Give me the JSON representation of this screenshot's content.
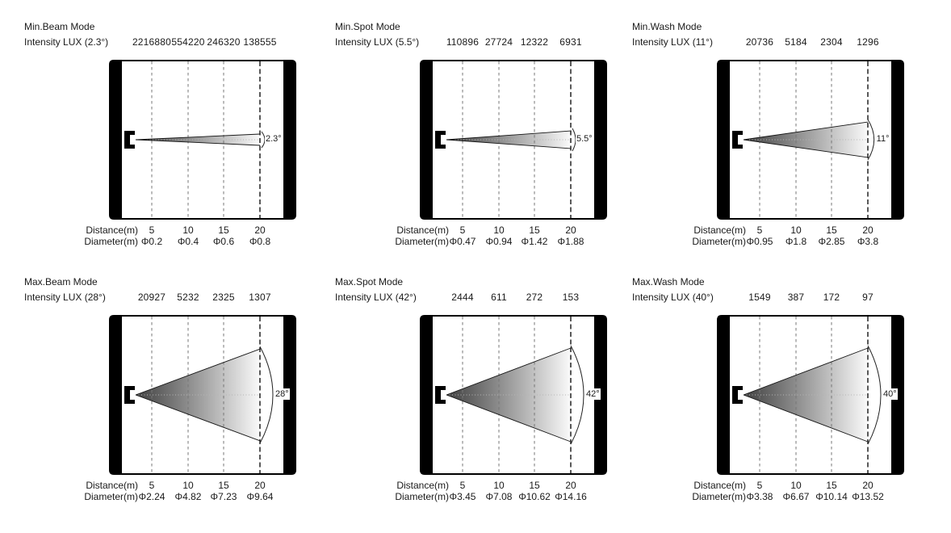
{
  "colors": {
    "frame": "#000000",
    "dash_minor": "#777777",
    "dash_major": "#000000",
    "beam_dark": "#3f3f3f",
    "beam_mid": "#9b9b9b",
    "beam_light": "#fafafa",
    "beam_edge": "#151515",
    "center_dots": "#b5b5b5",
    "arc": "#222222",
    "text": "#1a1a1a"
  },
  "panels": [
    {
      "title": "Min.Beam Mode",
      "intensity_label": "Intensity LUX (2.3°)",
      "beam_angle_deg": 2.3,
      "angle_label": "2.3°",
      "intensity_values": [
        "2216880",
        "554220",
        "246320",
        "138555"
      ],
      "distance_label": "Distance(m)",
      "diameter_label": "Diameter(m)",
      "distances": [
        "5",
        "10",
        "15",
        "20"
      ],
      "diameters": [
        "Φ0.2",
        "Φ0.4",
        "Φ0.6",
        "Φ0.8"
      ]
    },
    {
      "title": "Min.Spot Mode",
      "intensity_label": "Intensity LUX (5.5°)",
      "beam_angle_deg": 5.5,
      "angle_label": "5.5°",
      "intensity_values": [
        "110896",
        "27724",
        "12322",
        "6931"
      ],
      "distance_label": "Distance(m)",
      "diameter_label": "Diameter(m)",
      "distances": [
        "5",
        "10",
        "15",
        "20"
      ],
      "diameters": [
        "Φ0.47",
        "Φ0.94",
        "Φ1.42",
        "Φ1.88"
      ]
    },
    {
      "title": "Min.Wash Mode",
      "intensity_label": "Intensity LUX (11°)",
      "beam_angle_deg": 11,
      "angle_label": "11°",
      "intensity_values": [
        "20736",
        "5184",
        "2304",
        "1296"
      ],
      "distance_label": "Distance(m)",
      "diameter_label": "Diameter(m)",
      "distances": [
        "5",
        "10",
        "15",
        "20"
      ],
      "diameters": [
        "Φ0.95",
        "Φ1.8",
        "Φ2.85",
        "Φ3.8"
      ]
    },
    {
      "title": "Max.Beam Mode",
      "intensity_label": "Intensity LUX (28°)",
      "beam_angle_deg": 28,
      "angle_label": "28°",
      "intensity_values": [
        "20927",
        "5232",
        "2325",
        "1307"
      ],
      "distance_label": "Distance(m)",
      "diameter_label": "Diameter(m)",
      "distances": [
        "5",
        "10",
        "15",
        "20"
      ],
      "diameters": [
        "Φ2.24",
        "Φ4.82",
        "Φ7.23",
        "Φ9.64"
      ]
    },
    {
      "title": "Max.Spot Mode",
      "intensity_label": "Intensity LUX (42°)",
      "beam_angle_deg": 42,
      "angle_label": "42°",
      "intensity_values": [
        "2444",
        "611",
        "272",
        "153"
      ],
      "distance_label": "Distance(m)",
      "diameter_label": "Diameter(m)",
      "distances": [
        "5",
        "10",
        "15",
        "20"
      ],
      "diameters": [
        "Φ3.45",
        "Φ7.08",
        "Φ10.62",
        "Φ14.16"
      ]
    },
    {
      "title": "Max.Wash Mode",
      "intensity_label": "Intensity LUX (40°)",
      "beam_angle_deg": 40,
      "angle_label": "40°",
      "intensity_values": [
        "1549",
        "387",
        "172",
        "97"
      ],
      "distance_label": "Distance(m)",
      "diameter_label": "Diameter(m)",
      "distances": [
        "5",
        "10",
        "15",
        "20"
      ],
      "diameters": [
        "Φ3.38",
        "Φ6.67",
        "Φ10.14",
        "Φ13.52"
      ]
    }
  ]
}
